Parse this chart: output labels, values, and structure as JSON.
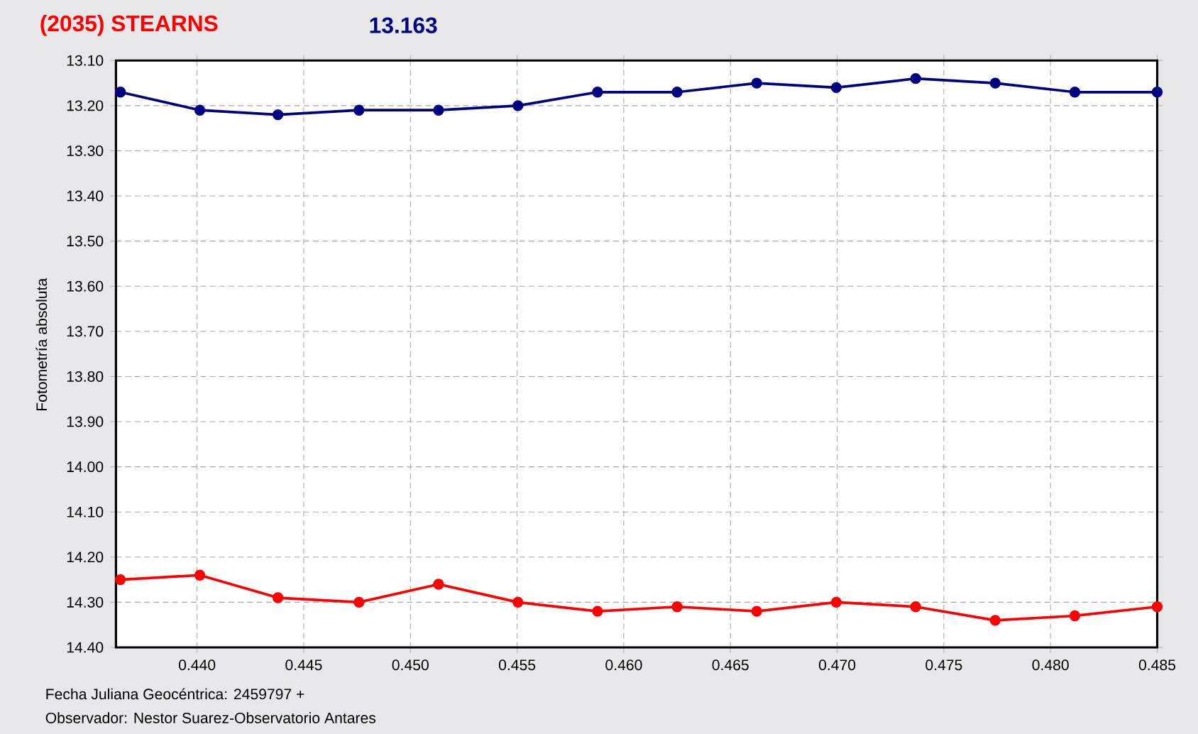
{
  "chart_data": {
    "type": "line",
    "title": "(2035) STEARNS",
    "subtitle": "13.163",
    "xlabel": "Fecha Juliana Geocéntrica: 2459797 +",
    "ylabel": "Fotometría absoluta",
    "annotations": [
      "Observador: Nestor Suarez-Observatorio Antares"
    ],
    "x": [
      0.43641,
      0.44013,
      0.44379,
      0.44759,
      0.45132,
      0.45504,
      0.45877,
      0.4625,
      0.46623,
      0.46996,
      0.47368,
      0.47741,
      0.48114,
      0.485
    ],
    "series": [
      {
        "color": "#000080",
        "values": [
          13.17,
          13.21,
          13.22,
          13.21,
          13.21,
          13.2,
          13.17,
          13.17,
          13.15,
          13.16,
          13.14,
          13.15,
          13.17,
          13.17
        ]
      },
      {
        "color": "#ff0000",
        "values": [
          14.25,
          14.24,
          14.29,
          14.3,
          14.26,
          14.3,
          14.32,
          14.31,
          14.32,
          14.3,
          14.31,
          14.34,
          14.33,
          14.31
        ]
      }
    ],
    "xlim": [
      0.4362,
      0.485
    ],
    "ylim": [
      14.4,
      13.1
    ],
    "xticks": [
      {
        "value": 0.44,
        "label": "0.440"
      },
      {
        "value": 0.445,
        "label": "0.445"
      },
      {
        "value": 0.45,
        "label": "0.450"
      },
      {
        "value": 0.455,
        "label": "0.455"
      },
      {
        "value": 0.46,
        "label": "0.460"
      },
      {
        "value": 0.465,
        "label": "0.465"
      },
      {
        "value": 0.47,
        "label": "0.470"
      },
      {
        "value": 0.475,
        "label": "0.475"
      },
      {
        "value": 0.48,
        "label": "0.480"
      },
      {
        "value": 0.485,
        "label": "0.485"
      }
    ],
    "yticks": [
      {
        "value": 13.1,
        "label": "13.10"
      },
      {
        "value": 13.2,
        "label": "13.20"
      },
      {
        "value": 13.3,
        "label": "13.30"
      },
      {
        "value": 13.4,
        "label": "13.40"
      },
      {
        "value": 13.5,
        "label": "13.50"
      },
      {
        "value": 13.6,
        "label": "13.60"
      },
      {
        "value": 13.7,
        "label": "13.70"
      },
      {
        "value": 13.8,
        "label": "13.80"
      },
      {
        "value": 13.9,
        "label": "13.90"
      },
      {
        "value": 14.0,
        "label": "14.00"
      },
      {
        "value": 14.1,
        "label": "14.10"
      },
      {
        "value": 14.2,
        "label": "14.20"
      },
      {
        "value": 14.3,
        "label": "14.30"
      },
      {
        "value": 14.4,
        "label": "14.40"
      }
    ],
    "grid": true,
    "marker": "circle",
    "line_style": "solid"
  }
}
